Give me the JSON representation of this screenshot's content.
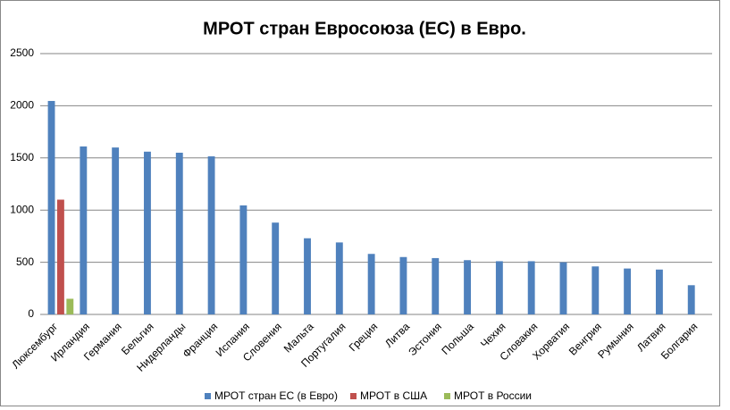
{
  "chart_data": {
    "type": "bar",
    "title": "МРОТ стран Евросоюза (ЕС) в Евро.",
    "categories": [
      "Люксембург",
      "Ирландия",
      "Германия",
      "Бельгия",
      "Нидерланды",
      "Франция",
      "Испания",
      "Словения",
      "Мальта",
      "Португалия",
      "Греция",
      "Литва",
      "Эстония",
      "Польша",
      "Чехия",
      "Словакия",
      "Хорватия",
      "Венгрия",
      "Румыния",
      "Латвия",
      "Болгария"
    ],
    "series": [
      {
        "name": "МРОТ стран ЕС (в Евро)",
        "color": "#4f81bd",
        "values": [
          2046,
          1610,
          1600,
          1560,
          1550,
          1515,
          1045,
          880,
          730,
          690,
          580,
          550,
          540,
          520,
          510,
          510,
          500,
          460,
          440,
          430,
          280
        ]
      },
      {
        "name": "МРОТ в США",
        "color": "#c0504d",
        "values": [
          1100,
          null,
          null,
          null,
          null,
          null,
          null,
          null,
          null,
          null,
          null,
          null,
          null,
          null,
          null,
          null,
          null,
          null,
          null,
          null,
          null
        ]
      },
      {
        "name": "МРОТ в России",
        "color": "#9bbb59",
        "values": [
          150,
          null,
          null,
          null,
          null,
          null,
          null,
          null,
          null,
          null,
          null,
          null,
          null,
          null,
          null,
          null,
          null,
          null,
          null,
          null,
          null
        ]
      }
    ],
    "ylim": [
      0,
      2500
    ],
    "yticks": [
      0,
      500,
      1000,
      1500,
      2000,
      2500
    ],
    "grid": true,
    "legend": "bottom"
  }
}
